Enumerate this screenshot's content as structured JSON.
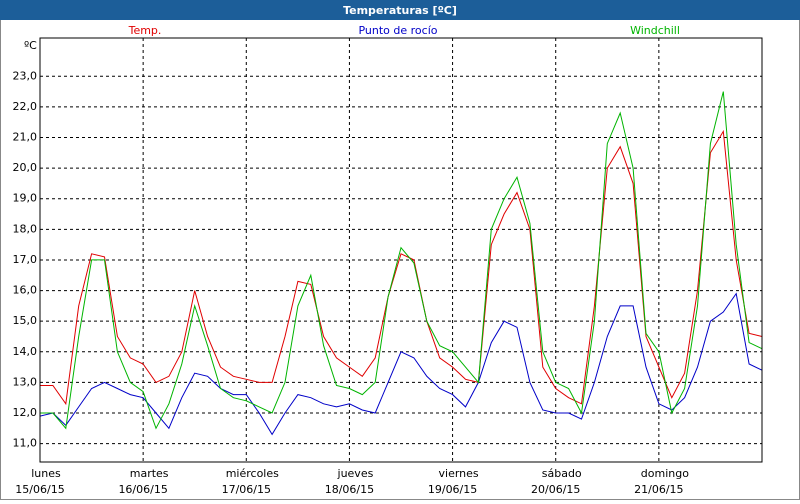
{
  "chart_data": {
    "type": "line",
    "title": "Temperaturas [ºC]",
    "y_label": "ºC",
    "x": [
      0,
      0.125,
      0.25,
      0.375,
      0.5,
      0.625,
      0.75,
      0.875,
      1,
      1.125,
      1.25,
      1.375,
      1.5,
      1.625,
      1.75,
      1.875,
      2,
      2.125,
      2.25,
      2.375,
      2.5,
      2.625,
      2.75,
      2.875,
      3,
      3.125,
      3.25,
      3.375,
      3.5,
      3.625,
      3.75,
      3.875,
      4,
      4.125,
      4.25,
      4.375,
      4.5,
      4.625,
      4.75,
      4.875,
      5,
      5.125,
      5.25,
      5.375,
      5.5,
      5.625,
      5.75,
      5.875,
      6,
      6.125,
      6.25,
      6.375,
      6.5,
      6.625,
      6.75,
      6.875,
      7
    ],
    "series": [
      {
        "name": "Temp.",
        "color": "#e00000",
        "values": [
          12.9,
          12.9,
          12.3,
          15.5,
          17.2,
          17.1,
          14.5,
          13.8,
          13.6,
          13.0,
          13.2,
          14.0,
          16.0,
          14.5,
          13.5,
          13.2,
          13.1,
          13.0,
          13.0,
          14.5,
          16.3,
          16.2,
          14.5,
          13.8,
          13.5,
          13.2,
          13.8,
          15.8,
          17.2,
          17.0,
          15.0,
          13.8,
          13.5,
          13.1,
          13.0,
          17.5,
          18.5,
          19.2,
          18.0,
          13.5,
          12.8,
          12.5,
          12.3,
          15.5,
          20.0,
          20.7,
          19.5,
          14.5,
          13.5,
          12.5,
          13.3,
          16.0,
          20.5,
          21.2,
          17.0,
          14.6,
          14.5
        ]
      },
      {
        "name": "Punto de rocío",
        "color": "#0000c8",
        "values": [
          11.9,
          12.0,
          11.6,
          12.2,
          12.8,
          13.0,
          12.8,
          12.6,
          12.5,
          12.0,
          11.5,
          12.5,
          13.3,
          13.2,
          12.8,
          12.6,
          12.6,
          12.0,
          11.3,
          12.0,
          12.6,
          12.5,
          12.3,
          12.2,
          12.3,
          12.1,
          12.0,
          13.0,
          14.0,
          13.8,
          13.2,
          12.8,
          12.6,
          12.2,
          13.0,
          14.3,
          15.0,
          14.8,
          13.0,
          12.1,
          12.0,
          12.0,
          11.8,
          13.0,
          14.5,
          15.5,
          15.5,
          13.5,
          12.3,
          12.1,
          12.5,
          13.5,
          15.0,
          15.3,
          15.9,
          13.6,
          13.4
        ]
      },
      {
        "name": "Windchill",
        "color": "#00b400",
        "values": [
          12.0,
          12.0,
          11.5,
          14.5,
          17.0,
          17.0,
          14.0,
          13.0,
          12.7,
          11.5,
          12.3,
          13.6,
          15.5,
          14.2,
          12.8,
          12.5,
          12.4,
          12.2,
          12.0,
          13.0,
          15.5,
          16.5,
          14.2,
          12.9,
          12.8,
          12.6,
          13.0,
          15.8,
          17.4,
          16.9,
          15.0,
          14.2,
          14.0,
          13.5,
          13.0,
          18.0,
          19.0,
          19.7,
          18.2,
          14.0,
          13.0,
          12.8,
          12.0,
          15.0,
          20.8,
          21.8,
          20.0,
          14.6,
          14.0,
          12.0,
          12.8,
          15.5,
          20.8,
          22.5,
          17.5,
          14.3,
          14.1
        ]
      }
    ],
    "xlim": [
      0,
      7
    ],
    "xticks": [
      {
        "value": 0,
        "label": "lunes",
        "date": "15/06/15"
      },
      {
        "value": 1,
        "label": "martes",
        "date": "16/06/15"
      },
      {
        "value": 2,
        "label": "miércoles",
        "date": "17/06/15"
      },
      {
        "value": 3,
        "label": "jueves",
        "date": "18/06/15"
      },
      {
        "value": 4,
        "label": "viernes",
        "date": "19/06/15"
      },
      {
        "value": 5,
        "label": "sábado",
        "date": "20/06/15"
      },
      {
        "value": 6,
        "label": "domingo",
        "date": "21/06/15"
      }
    ],
    "ylim": [
      10.4,
      24.25
    ],
    "yticks": [
      {
        "value": 11,
        "label": "11,0"
      },
      {
        "value": 12,
        "label": "12,0"
      },
      {
        "value": 13,
        "label": "13,0"
      },
      {
        "value": 14,
        "label": "14,0"
      },
      {
        "value": 15,
        "label": "15,0"
      },
      {
        "value": 16,
        "label": "16,0"
      },
      {
        "value": 17,
        "label": "17,0"
      },
      {
        "value": 18,
        "label": "18,0"
      },
      {
        "value": 19,
        "label": "19,0"
      },
      {
        "value": 20,
        "label": "20,0"
      },
      {
        "value": 21,
        "label": "21,0"
      },
      {
        "value": 22,
        "label": "22,0"
      },
      {
        "value": 23,
        "label": "23,0"
      }
    ],
    "grid": true
  }
}
